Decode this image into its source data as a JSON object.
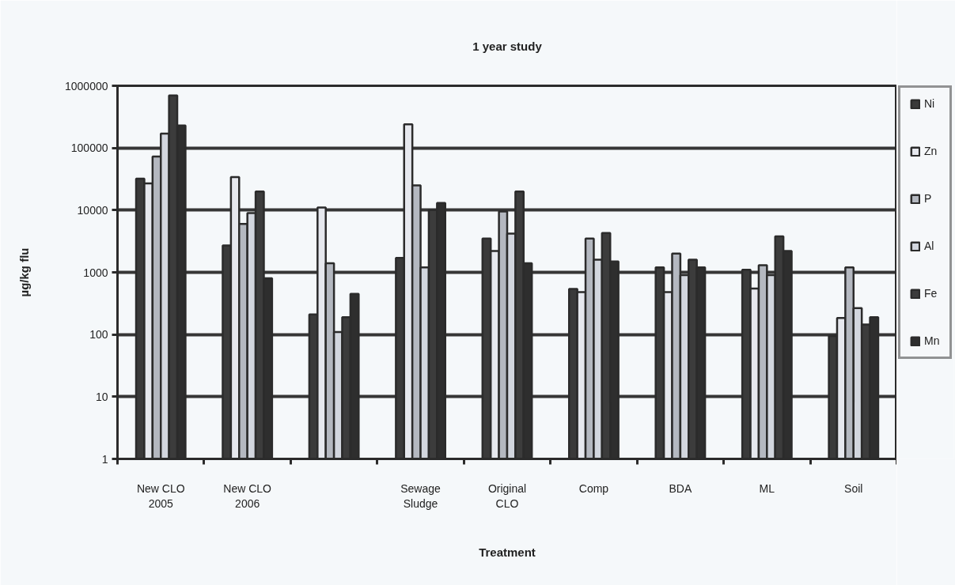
{
  "chart_data": {
    "type": "bar",
    "title": "1 year study",
    "xlabel": "Treatment",
    "ylabel": "µg/kg flu",
    "categories": [
      "New CLO 2005",
      "New CLO 2006",
      null,
      "Sewage Sludge",
      "Original CLO",
      "Comp",
      "BDA",
      "ML",
      "Soil"
    ],
    "series": [
      {
        "name": "Ni",
        "color": "#3a3a3a",
        "values": [
          32000,
          2700,
          210,
          1700,
          3500,
          540,
          1200,
          1100,
          95
        ]
      },
      {
        "name": "Zn",
        "color": "#e6e8ee",
        "values": [
          27000,
          34000,
          11000,
          240000,
          2200,
          480,
          480,
          550,
          185
        ]
      },
      {
        "name": "P",
        "color": "#b4b8c0",
        "values": [
          73000,
          6000,
          1400,
          25000,
          9500,
          3500,
          2000,
          1300,
          1200
        ]
      },
      {
        "name": "Al",
        "color": "#d2d6de",
        "values": [
          170000,
          9000,
          110,
          1200,
          4200,
          1600,
          900,
          900,
          265
        ]
      },
      {
        "name": "Fe",
        "color": "#3c3c3c",
        "values": [
          700000,
          20000,
          190,
          10000,
          20000,
          4300,
          1600,
          3800,
          145
        ]
      },
      {
        "name": "Mn",
        "color": "#2e2e2e",
        "values": [
          230000,
          800,
          450,
          13000,
          1400,
          1500,
          1200,
          2200,
          190
        ]
      }
    ],
    "log": true,
    "ylim": [
      1,
      1000000
    ],
    "yticks": [
      1,
      10,
      100,
      1000,
      10000,
      100000,
      1000000
    ],
    "grid": "y",
    "legend": "right"
  }
}
